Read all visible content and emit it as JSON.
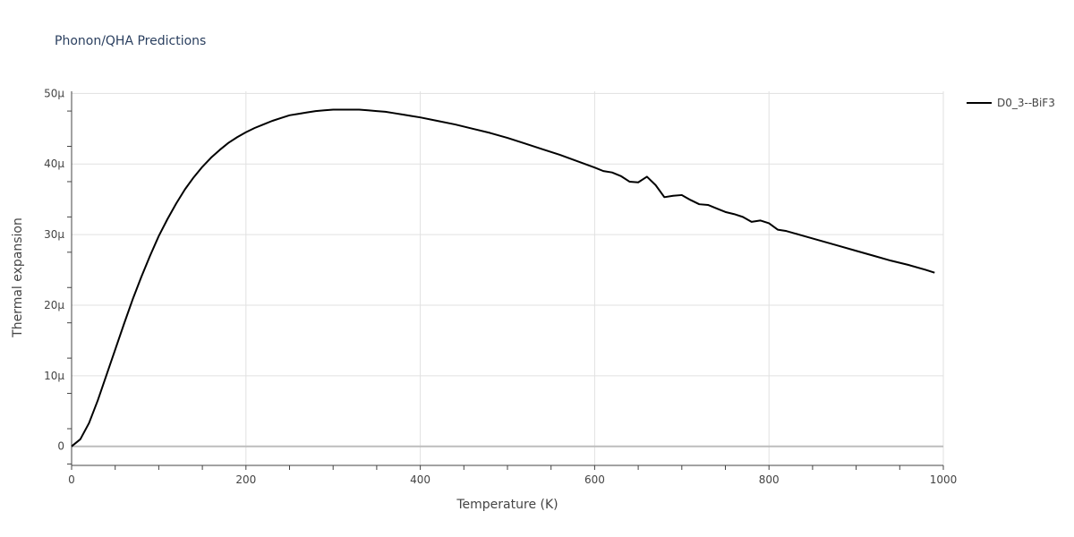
{
  "chart_data": {
    "type": "line",
    "title": "Phonon/QHA Predictions",
    "xlabel": "Temperature (K)",
    "ylabel": "Thermal expansion",
    "xlim": [
      0,
      1000
    ],
    "ylim": [
      -2.7e-06,
      5.03e-05
    ],
    "x_ticks": [
      0,
      200,
      400,
      600,
      800,
      1000
    ],
    "x_tick_labels": [
      "0",
      "200",
      "400",
      "600",
      "800",
      "1000"
    ],
    "y_ticks": [
      0,
      1e-05,
      2e-05,
      3e-05,
      4e-05,
      5e-05
    ],
    "y_tick_labels": [
      "0",
      "10μ",
      "20μ",
      "30μ",
      "40μ",
      "50μ"
    ],
    "grid": true,
    "legend_position": "top-right",
    "series": [
      {
        "name": "D0_3--BiF3",
        "color": "#000000",
        "x": [
          0,
          10,
          20,
          30,
          40,
          50,
          60,
          70,
          80,
          90,
          100,
          110,
          120,
          130,
          140,
          150,
          160,
          170,
          180,
          190,
          200,
          210,
          220,
          230,
          240,
          250,
          260,
          270,
          280,
          290,
          300,
          310,
          320,
          330,
          340,
          350,
          360,
          370,
          380,
          390,
          400,
          420,
          440,
          460,
          480,
          500,
          520,
          540,
          560,
          580,
          600,
          610,
          620,
          630,
          640,
          650,
          660,
          670,
          680,
          690,
          700,
          710,
          720,
          730,
          740,
          750,
          760,
          770,
          780,
          790,
          800,
          810,
          820,
          840,
          860,
          880,
          900,
          920,
          940,
          960,
          980,
          990
        ],
        "y": [
          0,
          1e-06,
          3.3e-06,
          6.5e-06,
          1.01e-05,
          1.37e-05,
          1.73e-05,
          2.08e-05,
          2.4e-05,
          2.7e-05,
          2.98e-05,
          3.22e-05,
          3.44e-05,
          3.64e-05,
          3.81e-05,
          3.96e-05,
          4.09e-05,
          4.2e-05,
          4.3e-05,
          4.38e-05,
          4.45e-05,
          4.51e-05,
          4.56e-05,
          4.61e-05,
          4.65e-05,
          4.69e-05,
          4.71e-05,
          4.73e-05,
          4.75e-05,
          4.76e-05,
          4.77e-05,
          4.77e-05,
          4.77e-05,
          4.77e-05,
          4.76e-05,
          4.75e-05,
          4.74e-05,
          4.72e-05,
          4.7e-05,
          4.68e-05,
          4.66e-05,
          4.61e-05,
          4.56e-05,
          4.5e-05,
          4.44e-05,
          4.37e-05,
          4.29e-05,
          4.21e-05,
          4.13e-05,
          4.04e-05,
          3.95e-05,
          3.9e-05,
          3.88e-05,
          3.83e-05,
          3.75e-05,
          3.74e-05,
          3.82e-05,
          3.7e-05,
          3.53e-05,
          3.55e-05,
          3.56e-05,
          3.49e-05,
          3.43e-05,
          3.42e-05,
          3.37e-05,
          3.32e-05,
          3.29e-05,
          3.25e-05,
          3.18e-05,
          3.2e-05,
          3.16e-05,
          3.07e-05,
          3.05e-05,
          2.98e-05,
          2.91e-05,
          2.84e-05,
          2.77e-05,
          2.7e-05,
          2.63e-05,
          2.57e-05,
          2.5e-05,
          2.46e-05
        ]
      }
    ]
  }
}
